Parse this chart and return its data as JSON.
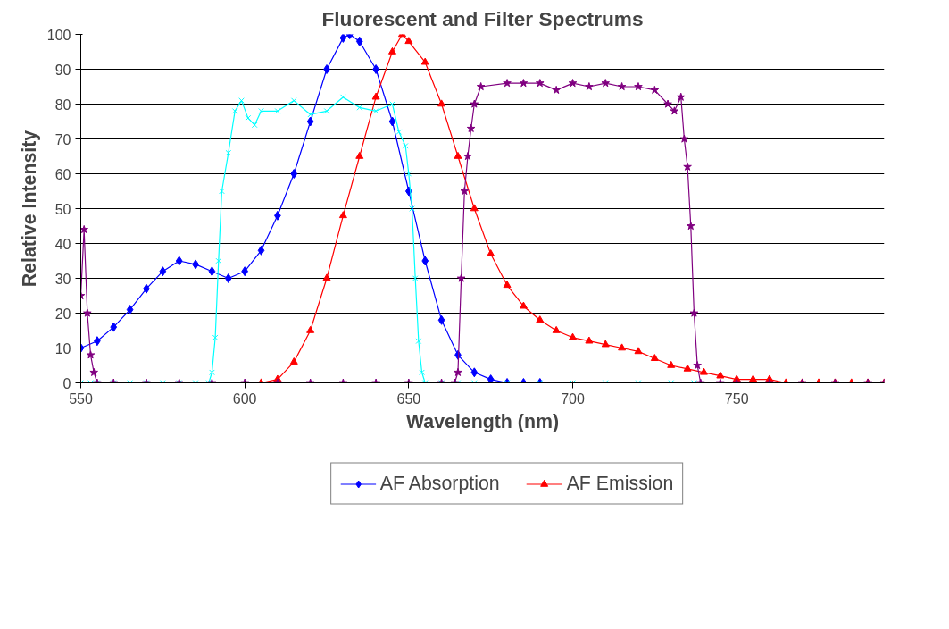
{
  "chart_data": {
    "type": "line",
    "title": "Fluorescent and Filter Spectrums",
    "xlabel": "Wavelength (nm)",
    "ylabel": "Relative Intensity",
    "xlim": [
      550,
      795
    ],
    "xticks": [
      550,
      600,
      650,
      700,
      750
    ],
    "ylim": [
      0,
      100
    ],
    "yticks": [
      0,
      10,
      20,
      30,
      40,
      50,
      60,
      70,
      80,
      90,
      100
    ],
    "grid": "y",
    "legend": "bottom",
    "series": [
      {
        "name": "AF Absorption",
        "color": "#0000ff",
        "marker": "diamond",
        "x": [
          550,
          555,
          560,
          565,
          570,
          575,
          580,
          585,
          590,
          595,
          600,
          605,
          610,
          615,
          620,
          625,
          630,
          632,
          635,
          640,
          645,
          650,
          655,
          660,
          665,
          670,
          675,
          680,
          685,
          690
        ],
        "values": [
          10,
          12,
          16,
          21,
          27,
          32,
          35,
          34,
          32,
          30,
          32,
          38,
          48,
          60,
          75,
          90,
          99,
          100,
          98,
          90,
          75,
          55,
          35,
          18,
          8,
          3,
          1,
          0,
          0,
          0
        ]
      },
      {
        "name": "AF Emission",
        "color": "#ff0000",
        "marker": "triangle",
        "x": [
          605,
          610,
          615,
          620,
          625,
          630,
          635,
          640,
          645,
          648,
          650,
          655,
          660,
          665,
          670,
          675,
          680,
          685,
          690,
          695,
          700,
          705,
          710,
          715,
          720,
          725,
          730,
          735,
          740,
          745,
          750,
          755,
          760,
          765,
          770,
          775,
          780,
          785,
          790,
          795
        ],
        "values": [
          0,
          1,
          6,
          15,
          30,
          48,
          65,
          82,
          95,
          100,
          98,
          92,
          80,
          65,
          50,
          37,
          28,
          22,
          18,
          15,
          13,
          12,
          11,
          10,
          9,
          7,
          5,
          4,
          3,
          2,
          1,
          1,
          1,
          0,
          0,
          0,
          0,
          0,
          0,
          0
        ]
      },
      {
        "color": "#00ffff",
        "marker": "cross",
        "x": [
          550,
          553,
          555,
          560,
          565,
          570,
          575,
          580,
          585,
          589,
          590,
          591,
          592,
          593,
          595,
          597,
          599,
          601,
          603,
          605,
          610,
          615,
          620,
          625,
          630,
          635,
          640,
          645,
          647,
          649,
          650,
          651,
          652,
          653,
          654,
          655,
          660,
          665,
          670,
          680,
          690,
          700,
          710,
          720,
          730,
          737
        ],
        "values": [
          0,
          0,
          0,
          0,
          0,
          0,
          0,
          0,
          0,
          0,
          3,
          13,
          35,
          55,
          66,
          78,
          81,
          76,
          74,
          78,
          78,
          81,
          77,
          78,
          82,
          79,
          78,
          80,
          72,
          68,
          60,
          50,
          30,
          12,
          3,
          0,
          0,
          0,
          0,
          0,
          0,
          0,
          0,
          0,
          0,
          0
        ]
      },
      {
        "color": "#800080",
        "marker": "star",
        "x": [
          550,
          551,
          552,
          553,
          554,
          555,
          560,
          570,
          580,
          590,
          600,
          610,
          620,
          630,
          640,
          650,
          660,
          664,
          665,
          666,
          667,
          668,
          669,
          670,
          672,
          680,
          685,
          690,
          695,
          700,
          705,
          710,
          715,
          720,
          725,
          729,
          731,
          733,
          734,
          735,
          736,
          737,
          738,
          739,
          745,
          750,
          760,
          770,
          780,
          790,
          795
        ],
        "values": [
          25,
          44,
          20,
          8,
          3,
          0,
          0,
          0,
          0,
          0,
          0,
          0,
          0,
          0,
          0,
          0,
          0,
          0,
          3,
          30,
          55,
          65,
          73,
          80,
          85,
          86,
          86,
          86,
          84,
          86,
          85,
          86,
          85,
          85,
          84,
          80,
          78,
          82,
          70,
          62,
          45,
          20,
          5,
          0,
          0,
          0,
          0,
          0,
          0,
          0,
          0
        ]
      }
    ]
  }
}
